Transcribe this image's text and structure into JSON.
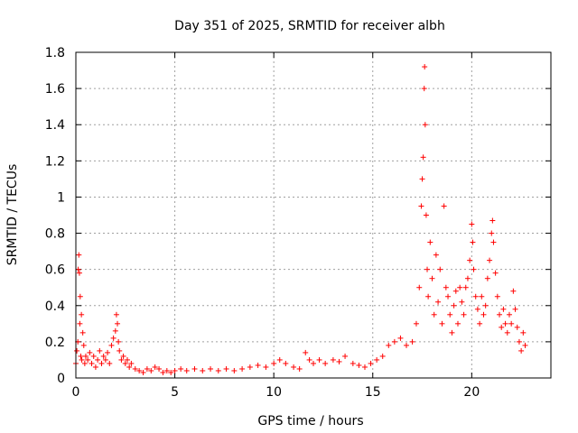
{
  "chart_data": {
    "type": "scatter",
    "title": "Day 351 of 2025, SRMTID for receiver albh",
    "xlabel": "GPS time / hours",
    "ylabel": "SRMTID / TECUs",
    "xlim": [
      0,
      24
    ],
    "ylim": [
      0,
      1.8
    ],
    "xticks": [
      0,
      5,
      10,
      15,
      20
    ],
    "yticks": [
      0,
      0.2,
      0.4,
      0.6,
      0.8,
      1,
      1.2,
      1.4,
      1.6,
      1.8
    ],
    "xtick_labels": [
      "0",
      "5",
      "10",
      "15",
      "20"
    ],
    "ytick_labels": [
      "0",
      "0.2",
      "0.4",
      "0.6",
      "0.8",
      "1",
      "1.2",
      "1.4",
      "1.6",
      "1.8"
    ],
    "grid": true,
    "marker": "+",
    "color": "#ff0000",
    "series": [
      {
        "name": "SRMTID",
        "points": [
          [
            0.0,
            0.08
          ],
          [
            0.05,
            0.15
          ],
          [
            0.1,
            0.2
          ],
          [
            0.12,
            0.6
          ],
          [
            0.15,
            0.68
          ],
          [
            0.18,
            0.58
          ],
          [
            0.2,
            0.3
          ],
          [
            0.22,
            0.45
          ],
          [
            0.25,
            0.12
          ],
          [
            0.28,
            0.35
          ],
          [
            0.3,
            0.1
          ],
          [
            0.35,
            0.25
          ],
          [
            0.4,
            0.18
          ],
          [
            0.45,
            0.08
          ],
          [
            0.5,
            0.12
          ],
          [
            0.6,
            0.1
          ],
          [
            0.7,
            0.14
          ],
          [
            0.8,
            0.08
          ],
          [
            0.9,
            0.12
          ],
          [
            1.0,
            0.06
          ],
          [
            1.1,
            0.1
          ],
          [
            1.2,
            0.15
          ],
          [
            1.3,
            0.08
          ],
          [
            1.4,
            0.12
          ],
          [
            1.5,
            0.1
          ],
          [
            1.6,
            0.14
          ],
          [
            1.7,
            0.08
          ],
          [
            1.8,
            0.18
          ],
          [
            1.9,
            0.22
          ],
          [
            2.0,
            0.26
          ],
          [
            2.05,
            0.35
          ],
          [
            2.1,
            0.3
          ],
          [
            2.15,
            0.2
          ],
          [
            2.2,
            0.15
          ],
          [
            2.3,
            0.1
          ],
          [
            2.4,
            0.12
          ],
          [
            2.5,
            0.08
          ],
          [
            2.6,
            0.1
          ],
          [
            2.7,
            0.06
          ],
          [
            2.8,
            0.08
          ],
          [
            3.0,
            0.05
          ],
          [
            3.2,
            0.04
          ],
          [
            3.4,
            0.03
          ],
          [
            3.6,
            0.05
          ],
          [
            3.8,
            0.04
          ],
          [
            4.0,
            0.06
          ],
          [
            4.2,
            0.05
          ],
          [
            4.4,
            0.03
          ],
          [
            4.6,
            0.04
          ],
          [
            4.8,
            0.03
          ],
          [
            5.0,
            0.04
          ],
          [
            5.3,
            0.05
          ],
          [
            5.6,
            0.04
          ],
          [
            6.0,
            0.05
          ],
          [
            6.4,
            0.04
          ],
          [
            6.8,
            0.05
          ],
          [
            7.2,
            0.04
          ],
          [
            7.6,
            0.05
          ],
          [
            8.0,
            0.04
          ],
          [
            8.4,
            0.05
          ],
          [
            8.8,
            0.06
          ],
          [
            9.2,
            0.07
          ],
          [
            9.6,
            0.06
          ],
          [
            10.0,
            0.08
          ],
          [
            10.3,
            0.1
          ],
          [
            10.6,
            0.08
          ],
          [
            11.0,
            0.06
          ],
          [
            11.3,
            0.05
          ],
          [
            11.6,
            0.14
          ],
          [
            11.8,
            0.1
          ],
          [
            12.0,
            0.08
          ],
          [
            12.3,
            0.1
          ],
          [
            12.6,
            0.08
          ],
          [
            13.0,
            0.1
          ],
          [
            13.3,
            0.09
          ],
          [
            13.6,
            0.12
          ],
          [
            14.0,
            0.08
          ],
          [
            14.3,
            0.07
          ],
          [
            14.6,
            0.06
          ],
          [
            14.9,
            0.08
          ],
          [
            15.2,
            0.1
          ],
          [
            15.5,
            0.12
          ],
          [
            15.8,
            0.18
          ],
          [
            16.1,
            0.2
          ],
          [
            16.4,
            0.22
          ],
          [
            16.7,
            0.18
          ],
          [
            17.0,
            0.2
          ],
          [
            17.2,
            0.3
          ],
          [
            17.35,
            0.5
          ],
          [
            17.45,
            0.95
          ],
          [
            17.5,
            1.1
          ],
          [
            17.55,
            1.22
          ],
          [
            17.6,
            1.6
          ],
          [
            17.62,
            1.72
          ],
          [
            17.65,
            1.4
          ],
          [
            17.7,
            0.9
          ],
          [
            17.75,
            0.6
          ],
          [
            17.8,
            0.45
          ],
          [
            17.9,
            0.75
          ],
          [
            18.0,
            0.55
          ],
          [
            18.1,
            0.35
          ],
          [
            18.2,
            0.68
          ],
          [
            18.3,
            0.42
          ],
          [
            18.4,
            0.6
          ],
          [
            18.5,
            0.3
          ],
          [
            18.6,
            0.95
          ],
          [
            18.7,
            0.5
          ],
          [
            18.8,
            0.45
          ],
          [
            18.9,
            0.35
          ],
          [
            19.0,
            0.25
          ],
          [
            19.1,
            0.4
          ],
          [
            19.2,
            0.48
          ],
          [
            19.3,
            0.3
          ],
          [
            19.4,
            0.5
          ],
          [
            19.5,
            0.42
          ],
          [
            19.6,
            0.35
          ],
          [
            19.7,
            0.5
          ],
          [
            19.8,
            0.55
          ],
          [
            19.9,
            0.65
          ],
          [
            20.0,
            0.85
          ],
          [
            20.05,
            0.75
          ],
          [
            20.1,
            0.6
          ],
          [
            20.2,
            0.45
          ],
          [
            20.3,
            0.38
          ],
          [
            20.4,
            0.3
          ],
          [
            20.5,
            0.45
          ],
          [
            20.6,
            0.35
          ],
          [
            20.7,
            0.4
          ],
          [
            20.8,
            0.55
          ],
          [
            20.9,
            0.65
          ],
          [
            21.0,
            0.8
          ],
          [
            21.05,
            0.87
          ],
          [
            21.1,
            0.75
          ],
          [
            21.2,
            0.58
          ],
          [
            21.3,
            0.45
          ],
          [
            21.4,
            0.35
          ],
          [
            21.5,
            0.28
          ],
          [
            21.6,
            0.38
          ],
          [
            21.7,
            0.3
          ],
          [
            21.8,
            0.25
          ],
          [
            21.9,
            0.35
          ],
          [
            22.0,
            0.3
          ],
          [
            22.1,
            0.48
          ],
          [
            22.2,
            0.38
          ],
          [
            22.3,
            0.28
          ],
          [
            22.4,
            0.2
          ],
          [
            22.5,
            0.15
          ],
          [
            22.6,
            0.25
          ],
          [
            22.7,
            0.18
          ]
        ]
      }
    ]
  }
}
